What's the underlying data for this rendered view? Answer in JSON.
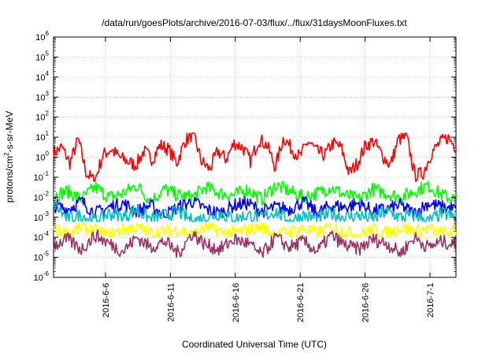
{
  "chart_data": {
    "type": "line",
    "title": "/data/run/goesPlots/archive/2016-07-03/flux/../flux/31daysMoonFluxes.txt",
    "xlabel": "Coordinated Universal Time (UTC)",
    "ylabel": "protons/cm2-s-sr-MeV",
    "y_scale": "log",
    "ylim_exponents": [
      -6,
      6
    ],
    "y_tick_base": "10",
    "y_tick_exponents": [
      "-6",
      "-5",
      "-4",
      "-3",
      "-2",
      "-1",
      "0",
      "1",
      "2",
      "3",
      "4",
      "5",
      "6"
    ],
    "x_range": [
      "2016-06-02",
      "2016-07-03"
    ],
    "x_ticks": [
      "2016-6-6",
      "2016-6-11",
      "2016-6-16",
      "2016-6-21",
      "2016-6-26",
      "2016-7-1"
    ],
    "grid": true,
    "series": [
      {
        "color": "#ff0000",
        "approx_log10_range": [
          -1.2,
          1.2
        ],
        "values_log10": [
          0.2,
          0.5,
          -0.3,
          0.9,
          -0.8,
          -1.2,
          0.1,
          0.4,
          0.0,
          -0.2,
          -0.4,
          0.3,
          -0.1,
          0.6,
          0.4,
          -0.3,
          0.8,
          1.2,
          -0.2,
          -0.6,
          0.3,
          -0.1,
          0.7,
          0.5,
          -0.2,
          0.9,
          0.6,
          -0.5,
          1.0,
          0.4,
          0.0,
          0.8,
          0.3,
          0.1,
          0.7,
          0.5,
          -0.8,
          -0.3,
          0.6,
          0.8,
          0.1,
          -0.4,
          0.9,
          1.0,
          -0.9,
          -0.8,
          0.2,
          0.7,
          1.0,
          0.5
        ]
      },
      {
        "color": "#00ff00",
        "approx_log10_range": [
          -2.5,
          -1.2
        ],
        "values_log10": [
          -1.9,
          -1.7,
          -2.1,
          -1.5,
          -2.0,
          -1.8,
          -1.4,
          -2.2,
          -1.6,
          -1.9,
          -2.0,
          -1.5,
          -1.8,
          -1.9,
          -1.6,
          -2.1,
          -1.4,
          -1.7,
          -2.0,
          -1.8,
          -1.5,
          -1.9,
          -2.1,
          -1.6,
          -1.8,
          -2.0,
          -1.7,
          -1.4,
          -1.9,
          -2.1
        ]
      },
      {
        "color": "#0000ff",
        "approx_log10_range": [
          -3.0,
          -2.0
        ],
        "values_log10": [
          -2.4,
          -2.6,
          -2.2,
          -2.8,
          -2.5,
          -2.3,
          -2.7,
          -2.4,
          -2.9,
          -2.5,
          -2.2,
          -2.6,
          -2.8,
          -2.4,
          -2.3,
          -2.7,
          -2.5,
          -2.6,
          -2.2,
          -2.8,
          -2.4,
          -2.5,
          -2.3,
          -2.7,
          -2.6,
          -2.4,
          -2.8,
          -2.3,
          -2.5,
          -2.6
        ]
      },
      {
        "color": "#00c0c0",
        "approx_log10_range": [
          -3.2,
          -2.2
        ],
        "values_log10": [
          -2.3,
          -3.1,
          -2.9,
          -3.2,
          -2.8,
          -3.0,
          -2.6,
          -3.1,
          -2.9,
          -2.7,
          -3.2,
          -3.0,
          -2.8,
          -3.1,
          -2.9,
          -3.0,
          -2.7,
          -3.2,
          -2.9,
          -3.1,
          -2.8,
          -3.0,
          -2.9,
          -3.1,
          -2.7,
          -3.0,
          -2.9,
          -3.2,
          -2.8,
          -3.0
        ]
      },
      {
        "color": "#ffff00",
        "approx_log10_range": [
          -4.0,
          -3.3
        ],
        "values_log10": [
          -3.6,
          -3.8,
          -3.5,
          -3.7,
          -3.9,
          -3.6,
          -3.5,
          -3.8,
          -3.7,
          -3.6,
          -3.9,
          -3.5,
          -3.7,
          -3.8,
          -3.6,
          -3.5,
          -3.9,
          -3.7,
          -3.6,
          -3.8,
          -3.5,
          -3.7,
          -3.9,
          -3.6,
          -3.8,
          -3.5,
          -3.7,
          -3.6,
          -3.8,
          -3.7
        ]
      },
      {
        "color": "#993366",
        "approx_log10_range": [
          -5.0,
          -3.6
        ],
        "values_log10": [
          -4.4,
          -4.1,
          -4.6,
          -3.9,
          -4.3,
          -4.7,
          -4.0,
          -4.5,
          -4.2,
          -4.8,
          -3.8,
          -4.4,
          -4.6,
          -4.1,
          -4.3,
          -4.9,
          -4.0,
          -4.5,
          -4.2,
          -4.7,
          -3.9,
          -4.4,
          -4.6,
          -4.1,
          -4.3,
          -4.8,
          -4.0,
          -4.5,
          -4.2,
          -4.4
        ]
      }
    ]
  }
}
